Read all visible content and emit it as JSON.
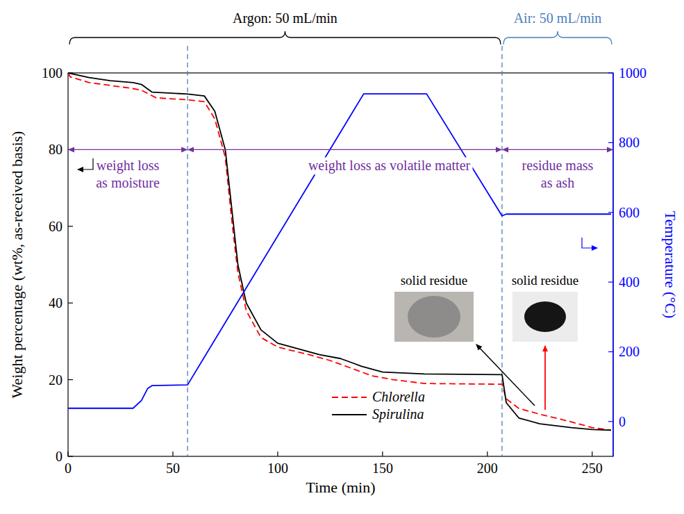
{
  "chart_data": {
    "type": "line",
    "x_label": "Time (min)",
    "y_label": "Weight percentage (wt%, as-received basis)",
    "y2_label": "Temperature (°C)",
    "xlim": [
      0,
      260
    ],
    "xticks": [
      0,
      50,
      100,
      150,
      200,
      250
    ],
    "ylim": [
      0,
      100
    ],
    "yticks": [
      0,
      20,
      40,
      60,
      80,
      100
    ],
    "y2lim": [
      -100,
      1000
    ],
    "y2ticks": [
      0,
      200,
      400,
      600,
      800,
      1000
    ],
    "grid": false,
    "legend": "lower center",
    "series": [
      {
        "name": "Chlorella",
        "color": "#ff0000",
        "line_style": "dashed",
        "x": [
          0,
          1,
          10,
          30,
          35,
          42,
          57,
          65,
          70,
          75,
          78,
          81,
          85,
          92,
          100,
          115,
          125,
          135,
          145,
          155,
          170,
          207,
          209,
          215,
          225,
          240,
          250,
          259
        ],
        "values": [
          100,
          99,
          97.5,
          96,
          95.5,
          93.5,
          93,
          92.5,
          88,
          78,
          62,
          48,
          38,
          31,
          28.5,
          26.5,
          25,
          23,
          21,
          20,
          19,
          18.8,
          15,
          12.5,
          11,
          9,
          7.5,
          6.8
        ]
      },
      {
        "name": "Spirulina",
        "color": "#000000",
        "line_style": "solid",
        "x": [
          0,
          10,
          20,
          31,
          35,
          40,
          57,
          65,
          70,
          75,
          78,
          81,
          85,
          92,
          100,
          110,
          120,
          130,
          140,
          150,
          170,
          207,
          209,
          215,
          225,
          240,
          250,
          259
        ],
        "values": [
          100,
          98.8,
          98,
          97.5,
          97,
          95,
          94.5,
          94,
          90,
          80,
          65,
          50,
          40,
          33,
          29.5,
          28,
          26.5,
          25.5,
          23.5,
          22,
          21.5,
          21.3,
          14,
          10,
          8.5,
          7.5,
          7,
          6.8
        ]
      },
      {
        "color": "#0000ff",
        "line_style": "solid",
        "axis": "y2",
        "x": [
          0,
          31,
          35,
          38,
          40,
          57,
          141,
          171,
          207,
          209,
          259
        ],
        "values": [
          38,
          38,
          60,
          95,
          103,
          105,
          940,
          940,
          590,
          595,
          595
        ]
      }
    ],
    "phases": [
      {
        "label": "Argon: 50 mL/min",
        "from": 0,
        "to": 207,
        "color": "#000000"
      },
      {
        "label": "Air: 50 mL/min",
        "from": 207,
        "to": 260,
        "color": "#4a7ebb"
      }
    ],
    "boundaries": [
      57,
      207
    ],
    "stage_y": 80,
    "stages": [
      {
        "label": [
          "weight loss",
          "as moisture"
        ],
        "from": 0,
        "to": 57,
        "color": "#7030a0"
      },
      {
        "label": [
          "weight loss as volatile matter"
        ],
        "from": 57,
        "to": 207,
        "color": "#7030a0"
      },
      {
        "label": [
          "residue mass",
          "as ash"
        ],
        "from": 207,
        "to": 260,
        "color": "#7030a0"
      }
    ],
    "insets": [
      {
        "label": "solid residue"
      },
      {
        "label": "solid residue"
      }
    ]
  }
}
